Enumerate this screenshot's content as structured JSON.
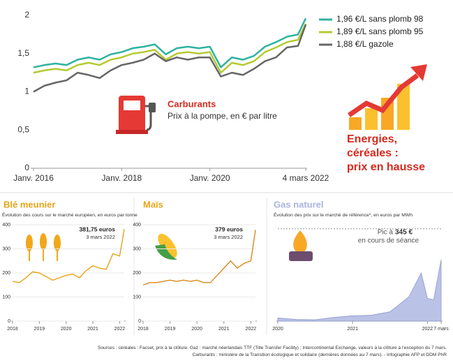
{
  "headline": [
    "Energies,",
    "céréales :",
    "prix en hausse"
  ],
  "sources": [
    "Sources : céréales : Facset, prix à la clôture. Gaz : marché néerlandais TTF (Title Transfer Facility) ; Intercontinental Exchange, valeurs à la clôture à l'exception du 7 mars.",
    "Carburants : ministère de la Transition écologique et solidaire (dernières données au 7 mars). - Infographie AFP et DDM PhR"
  ],
  "chart_data": [
    {
      "type": "line",
      "title": "Carburants",
      "subtitle": "Prix à la pompe, en € par litre",
      "x": [
        "2016-01",
        "2016-04",
        "2016-07",
        "2016-10",
        "2017-01",
        "2017-04",
        "2017-07",
        "2017-10",
        "2018-01",
        "2018-04",
        "2018-07",
        "2018-10",
        "2019-01",
        "2019-04",
        "2019-07",
        "2019-10",
        "2020-01",
        "2020-04",
        "2020-07",
        "2020-10",
        "2021-01",
        "2021-04",
        "2021-07",
        "2021-10",
        "2022-01",
        "2022-03-04"
      ],
      "series": [
        {
          "name": "1,96 €/L sans plomb 98",
          "color": "#2db39e",
          "values": [
            1.32,
            1.35,
            1.37,
            1.35,
            1.42,
            1.45,
            1.42,
            1.49,
            1.52,
            1.57,
            1.59,
            1.62,
            1.49,
            1.57,
            1.59,
            1.57,
            1.59,
            1.32,
            1.45,
            1.42,
            1.47,
            1.59,
            1.65,
            1.72,
            1.75,
            1.96
          ]
        },
        {
          "name": "1,89 €/L sans plomb 95",
          "color": "#b5c930",
          "values": [
            1.25,
            1.28,
            1.3,
            1.28,
            1.35,
            1.38,
            1.35,
            1.42,
            1.45,
            1.5,
            1.52,
            1.55,
            1.42,
            1.5,
            1.52,
            1.5,
            1.52,
            1.25,
            1.38,
            1.35,
            1.4,
            1.52,
            1.58,
            1.65,
            1.68,
            1.89
          ]
        },
        {
          "name": "1,88 €/L gazole",
          "color": "#666666",
          "values": [
            1.0,
            1.08,
            1.12,
            1.15,
            1.25,
            1.22,
            1.18,
            1.28,
            1.35,
            1.38,
            1.42,
            1.5,
            1.4,
            1.45,
            1.42,
            1.45,
            1.45,
            1.2,
            1.25,
            1.22,
            1.3,
            1.4,
            1.45,
            1.58,
            1.6,
            1.88
          ]
        }
      ],
      "xlim": [
        "2016-01",
        "2022-03-04"
      ],
      "xticks": [
        {
          "value": "2016-01",
          "label": "Janv. 2016"
        },
        {
          "value": "2018-01",
          "label": "Janv. 2018"
        },
        {
          "value": "2020-01",
          "label": "Janv. 2020"
        },
        {
          "value": "2022-03-04",
          "label": "4 mars 2022"
        }
      ],
      "ylim": [
        0,
        2
      ],
      "yticks": [
        0,
        {
          "value": 0.5,
          "label": "0,5"
        },
        1,
        {
          "value": 1.5,
          "label": "1,5"
        },
        2
      ],
      "legend": "top-right",
      "grid": false
    },
    {
      "type": "line",
      "title": "Blé meunier",
      "subtitle": "Évolution des cours sur le marché européen, en euros par tonne",
      "x": [
        "2018-01",
        "2018-04",
        "2018-07",
        "2018-10",
        "2019-01",
        "2019-04",
        "2019-07",
        "2019-10",
        "2020-01",
        "2020-04",
        "2020-07",
        "2020-10",
        "2021-01",
        "2021-04",
        "2021-07",
        "2021-10",
        "2022-01",
        "2022-03-03"
      ],
      "values": [
        165,
        160,
        180,
        205,
        200,
        185,
        170,
        180,
        190,
        195,
        180,
        210,
        230,
        220,
        215,
        280,
        270,
        381.75
      ],
      "color": "#e8a317",
      "annotations": [
        "381,75 euros",
        "3 mars 2022"
      ],
      "xlim": [
        "2018-01",
        "2022-03-03"
      ],
      "xticks": [
        2018,
        2019,
        2020,
        2021,
        2022
      ],
      "ylim": [
        0,
        400
      ],
      "yticks": [
        0,
        100,
        200,
        300,
        400
      ],
      "grid": true
    },
    {
      "type": "line",
      "title": "Maïs",
      "x": [
        "2018-01",
        "2018-04",
        "2018-07",
        "2018-10",
        "2019-01",
        "2019-04",
        "2019-07",
        "2019-10",
        "2020-01",
        "2020-04",
        "2020-07",
        "2020-10",
        "2021-01",
        "2021-04",
        "2021-07",
        "2021-10",
        "2022-01",
        "2022-03-03"
      ],
      "values": [
        150,
        160,
        160,
        165,
        170,
        165,
        170,
        165,
        170,
        160,
        160,
        190,
        220,
        250,
        220,
        240,
        250,
        379
      ],
      "color": "#d98a1c",
      "annotations": [
        "379 euros",
        "3 mars 2022"
      ],
      "xlim": [
        "2018-01",
        "2022-03-03"
      ],
      "xticks": [
        2018,
        2019,
        2020,
        2021,
        2022
      ],
      "ylim": [
        0,
        400
      ],
      "yticks": [
        0,
        100,
        200,
        300,
        400
      ],
      "grid": true
    },
    {
      "type": "area",
      "title": "Gas naturel",
      "subtitle": "Évolution des prix sur le marché de référence*, en euros par MWh",
      "x": [
        "2020-01",
        "2020-04",
        "2020-07",
        "2020-10",
        "2021-01",
        "2021-04",
        "2021-07",
        "2021-10",
        "2021-12",
        "2022-01",
        "2022-02",
        "2022-03-07"
      ],
      "values": [
        12,
        6,
        5,
        14,
        20,
        22,
        35,
        90,
        180,
        85,
        80,
        230
      ],
      "color": "#a9b3e0",
      "peak": 345,
      "peak_prefix": "Pic à",
      "peak_label": "345 €",
      "peak_note": "en cours de séance",
      "xlim": [
        "2020-01",
        "2022-03-07"
      ],
      "xticks": [
        2020,
        2021,
        2022,
        {
          "value": "2022-03-07",
          "label": "7 mars"
        }
      ],
      "ylim": [
        0,
        360
      ],
      "grid": false
    }
  ]
}
